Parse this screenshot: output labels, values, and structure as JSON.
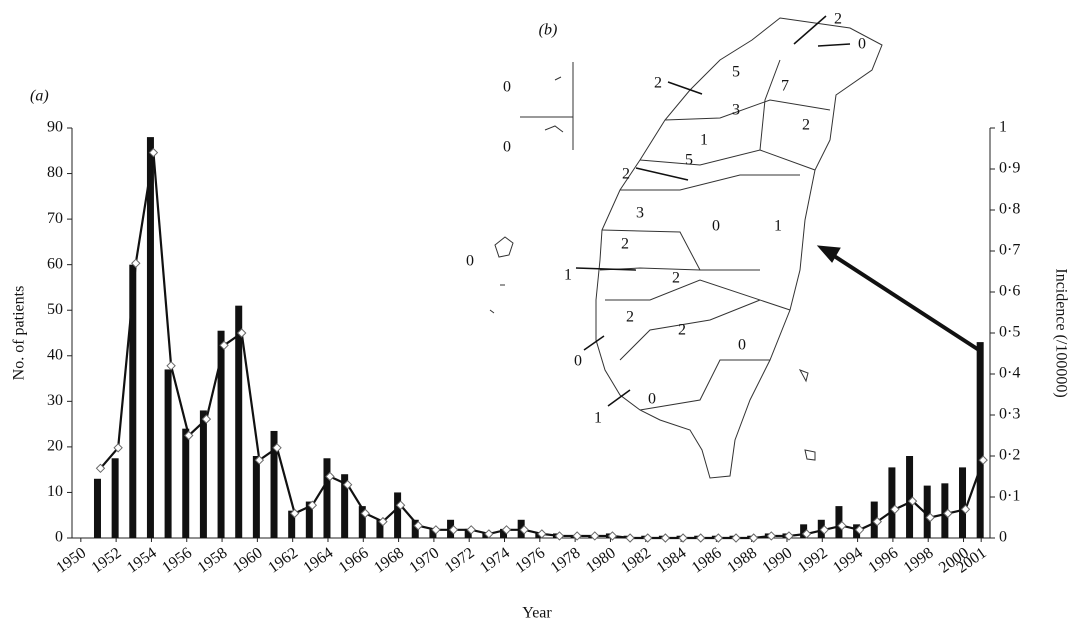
{
  "chart_data": {
    "type": "bar_line",
    "panel_label": "(a)",
    "x_label": "Year",
    "y_label": "No. of patients",
    "y2_label": "Incidence (/100000)",
    "categories": [
      1950,
      null,
      1952,
      null,
      1954,
      null,
      1956,
      null,
      1958,
      null,
      1960,
      null,
      1962,
      null,
      1964,
      null,
      1966,
      null,
      1968,
      null,
      1970,
      null,
      1972,
      null,
      1974,
      null,
      1976,
      null,
      1978,
      null,
      1980,
      null,
      1982,
      null,
      1984,
      null,
      1986,
      null,
      1988,
      null,
      1990,
      null,
      1992,
      null,
      1994,
      null,
      1996,
      null,
      1998,
      null,
      2000,
      2001
    ],
    "series": [
      {
        "name": "No. of patients",
        "color": "#111111",
        "values": [
          null,
          13,
          17.5,
          60,
          88,
          37,
          24,
          28,
          45.5,
          51,
          18,
          23.5,
          6,
          8,
          17.5,
          14,
          7,
          4,
          10,
          4,
          2,
          4,
          2,
          1,
          2,
          4,
          1,
          1,
          0.5,
          0.5,
          1,
          0.5,
          0.5,
          0.5,
          0.5,
          0.5,
          0.5,
          0.5,
          0.5,
          1,
          1,
          3,
          4,
          7,
          3,
          8,
          15.5,
          18,
          11.5,
          12,
          15.5,
          43
        ]
      },
      {
        "name": "Incidence",
        "color": "#111111",
        "axis": "y2",
        "values": [
          null,
          0.17,
          0.22,
          0.67,
          0.94,
          0.42,
          0.25,
          0.29,
          0.47,
          0.5,
          0.19,
          0.22,
          0.06,
          0.08,
          0.15,
          0.13,
          0.06,
          0.04,
          0.08,
          0.03,
          0.02,
          0.02,
          0.02,
          0.01,
          0.02,
          0.02,
          0.01,
          0.005,
          0.005,
          0.005,
          0.005,
          0,
          0,
          0,
          0,
          0,
          0,
          0,
          0,
          0.005,
          0.005,
          0.01,
          0.02,
          0.03,
          0.02,
          0.04,
          0.07,
          0.09,
          0.05,
          0.06,
          0.07,
          0.19
        ]
      }
    ],
    "ylim": [
      0,
      90
    ],
    "yticks": [
      0,
      10,
      20,
      30,
      40,
      50,
      60,
      70,
      80,
      90
    ],
    "y2lim": [
      0,
      1
    ],
    "y2ticks": [
      0,
      {
        "value": 0.1,
        "label": "0·1"
      },
      {
        "value": 0.2,
        "label": "0·2"
      },
      {
        "value": 0.3,
        "label": "0·3"
      },
      {
        "value": 0.4,
        "label": "0·4"
      },
      {
        "value": 0.5,
        "label": "0·5"
      },
      {
        "value": 0.6,
        "label": "0·6"
      },
      {
        "value": 0.7,
        "label": "0·7"
      },
      {
        "value": 0.8,
        "label": "0·8"
      },
      {
        "value": 0.9,
        "label": "0·9"
      },
      1
    ]
  },
  "inset_map": {
    "label": "(b)",
    "counts": [
      2,
      0,
      5,
      7,
      2,
      3,
      2,
      1,
      5,
      2,
      3,
      0,
      1,
      2,
      0,
      1,
      2,
      2,
      2,
      0,
      0,
      0,
      1,
      0,
      0
    ]
  }
}
